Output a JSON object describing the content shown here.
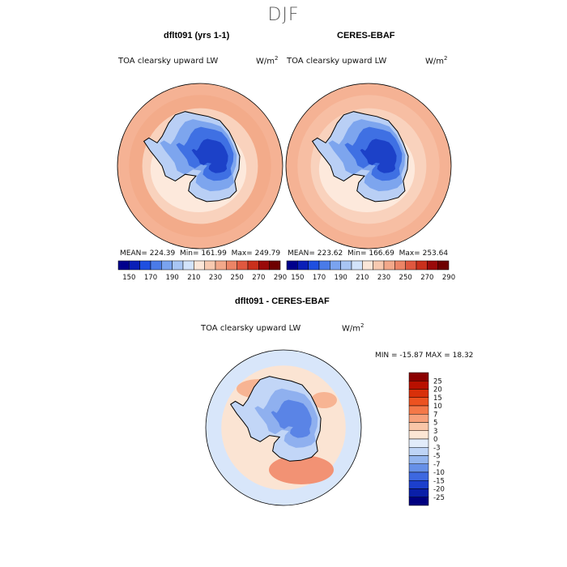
{
  "page_title": "DJF",
  "chart_data": [
    {
      "type": "heatmap",
      "projection": "south-polar-stereographic",
      "title": "dflt091 (yrs 1-1)",
      "variable": "TOA clearsky upward LW",
      "units_base": "W/m",
      "units_exp": "2",
      "stats": {
        "mean_text": "MEAN= 224.39",
        "min_text": "Min= 161.99",
        "max_text": "Max= 249.79"
      },
      "mean": 224.39,
      "min": 161.99,
      "max": 249.79
    },
    {
      "type": "heatmap",
      "projection": "south-polar-stereographic",
      "title": "CERES-EBAF",
      "variable": "TOA clearsky upward LW",
      "units_base": "W/m",
      "units_exp": "2",
      "stats": {
        "mean_text": "MEAN= 223.62",
        "min_text": "Min= 166.69",
        "max_text": "Max= 253.64"
      },
      "mean": 223.62,
      "min": 166.69,
      "max": 253.64
    },
    {
      "type": "heatmap",
      "projection": "south-polar-stereographic",
      "title": "dflt091 - CERES-EBAF",
      "variable": "TOA clearsky upward LW",
      "units_base": "W/m",
      "units_exp": "2",
      "stats": {
        "minmax_text": "MIN = -15.87 MAX =  18.32"
      },
      "min": -15.87,
      "max": 18.32
    }
  ],
  "colorbar_abs": {
    "colors": [
      "#00008c",
      "#0a1fb8",
      "#1f4fe0",
      "#4a7be8",
      "#7aa3ef",
      "#a8c5f4",
      "#d2e3fb",
      "#fbe6d8",
      "#f7c9b0",
      "#f2a88a",
      "#ec8466",
      "#e0583f",
      "#c9301c",
      "#9a0a0a",
      "#6e0000"
    ],
    "tick_labels": [
      "150",
      "170",
      "190",
      "210",
      "230",
      "250",
      "270",
      "290"
    ]
  },
  "colorbar_diff": {
    "colors": [
      "#8b0000",
      "#b81000",
      "#d8300a",
      "#ec5220",
      "#f47848",
      "#f7a07a",
      "#f9c6a8",
      "#fce6d4",
      "#e2ecfa",
      "#bed4f6",
      "#93b5ef",
      "#6690e8",
      "#3d68e0",
      "#1c3fcc",
      "#0a1fa8",
      "#000080"
    ],
    "tick_labels": [
      "25",
      "20",
      "15",
      "10",
      "7",
      "5",
      "3",
      "0",
      "-3",
      "-5",
      "-7",
      "-10",
      "-15",
      "-20",
      "-25"
    ]
  }
}
